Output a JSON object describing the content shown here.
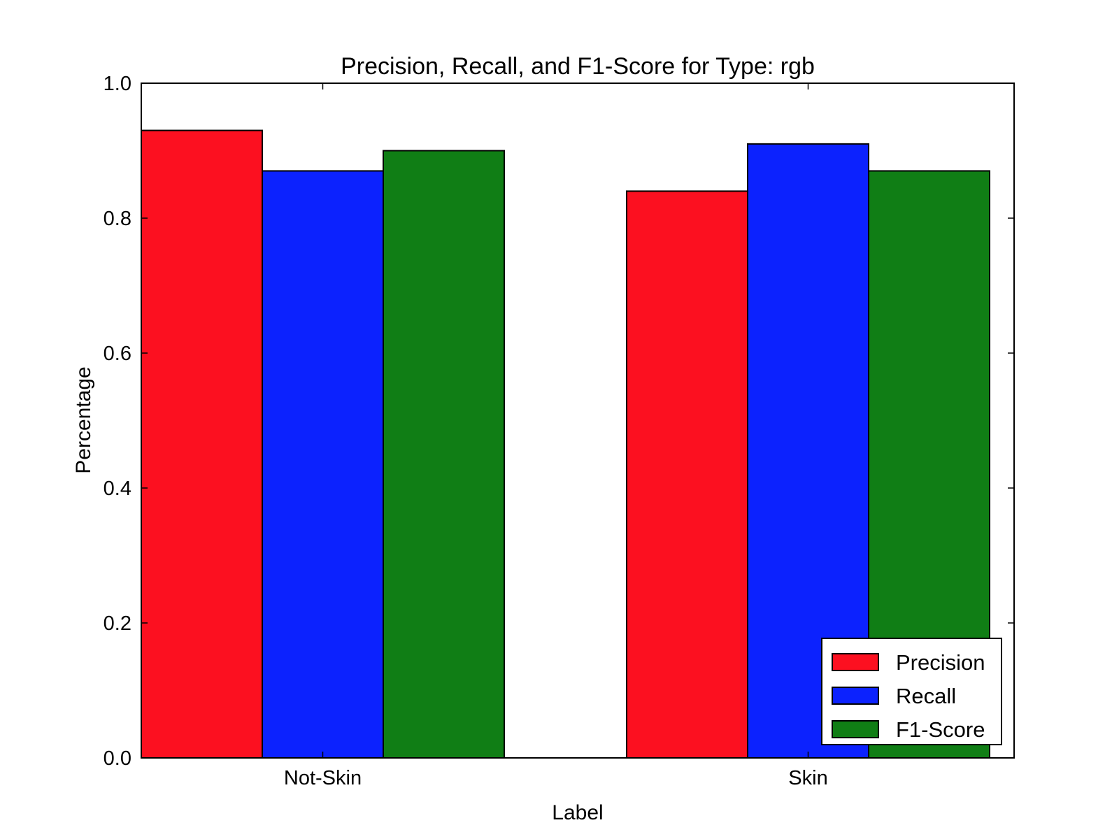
{
  "chart_data": {
    "type": "bar",
    "title": "Precision, Recall, and F1-Score for Type: rgb",
    "xlabel": "Label",
    "ylabel": "Percentage",
    "ylim": [
      0.0,
      1.0
    ],
    "yticks": [
      "0.0",
      "0.2",
      "0.4",
      "0.6",
      "0.8",
      "1.0"
    ],
    "categories": [
      "Not-Skin",
      "Skin"
    ],
    "series": [
      {
        "name": "Precision",
        "color": "#fc1020",
        "values": [
          0.93,
          0.84
        ]
      },
      {
        "name": "Recall",
        "color": "#0c22fe",
        "values": [
          0.87,
          0.91
        ]
      },
      {
        "name": "F1-Score",
        "color": "#107e15",
        "values": [
          0.9,
          0.87
        ]
      }
    ],
    "grid": false,
    "legend_position": "bottom-right"
  }
}
